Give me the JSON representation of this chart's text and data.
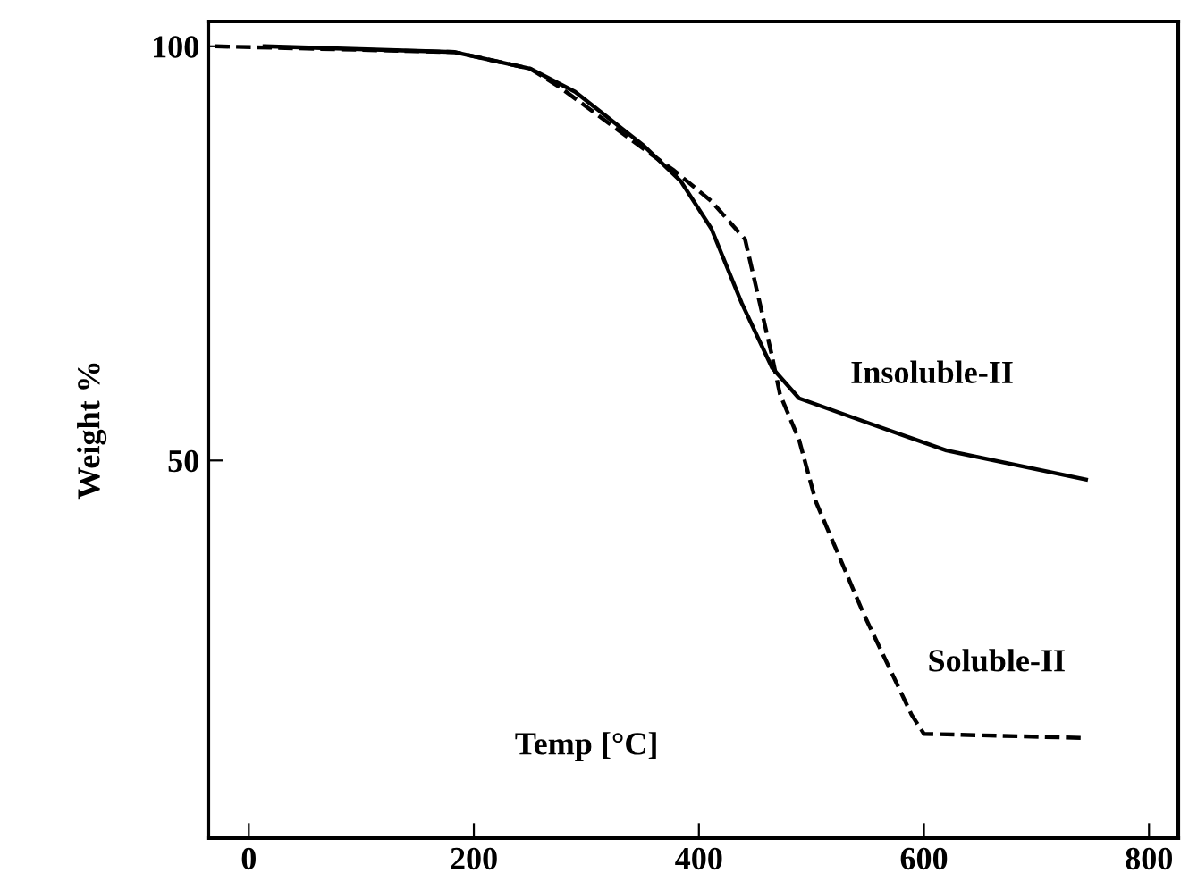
{
  "chart_data": {
    "type": "line",
    "xlabel": "Temp [°C]",
    "ylabel": "Weight %",
    "xlim": [
      -36,
      826
    ],
    "ylim": [
      4.4,
      103
    ],
    "xticks": [
      0,
      200,
      400,
      600,
      800
    ],
    "yticks": [
      50,
      100
    ],
    "series": [
      {
        "name": "Insoluble-II",
        "color": "#000000",
        "line_style": "solid",
        "x": [
          14,
          183,
          250,
          290,
          351,
          384,
          411,
          438,
          465,
          489,
          553,
          620,
          744
        ],
        "values": [
          100,
          99.3,
          97.3,
          94.5,
          88,
          83.7,
          78,
          69,
          61.2,
          57.5,
          54.4,
          51.2,
          47.7
        ]
      },
      {
        "name": "Soluble-II",
        "color": "#000000",
        "line_style": "dashed",
        "x": [
          -30,
          183,
          250,
          277,
          351,
          378,
          411,
          441,
          465,
          472,
          489,
          504,
          546,
          589,
          600,
          744
        ],
        "values": [
          100,
          99.3,
          97.3,
          95,
          87.6,
          85,
          81.3,
          76.7,
          62.6,
          58,
          52.5,
          45,
          31.6,
          19.3,
          17,
          16.5
        ]
      }
    ]
  }
}
